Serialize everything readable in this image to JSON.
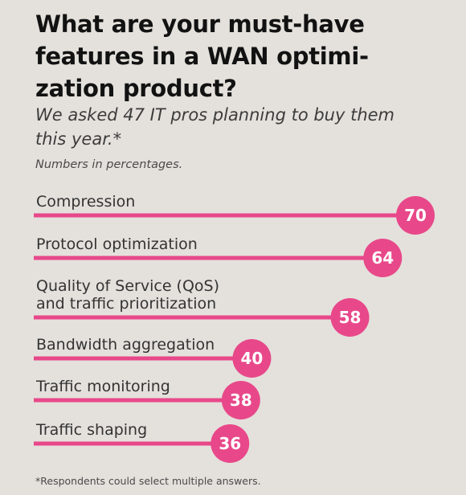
{
  "title": "What are your must-have features in a WAN optimi- zation product?",
  "subtitle": "We asked 47 IT pros planning to buy them this year.*",
  "note": "Numbers in percentages.",
  "footnote": "*Respondents could select multiple answers.",
  "accent_color": "#e8488a",
  "chart_data": {
    "type": "bar",
    "orientation": "horizontal",
    "title": "What are your must-have features in a WAN optimi- zation product?",
    "subtitle": "We asked 47 IT pros planning to buy them this year.*",
    "unit": "Numbers in percentages.",
    "categories": [
      [
        "Compression"
      ],
      [
        "Protocol optimization"
      ],
      [
        "Quality of Service (QoS)",
        "and traffic prioritization"
      ],
      [
        "Bandwidth aggregation"
      ],
      [
        "Traffic monitoring"
      ],
      [
        "Traffic shaping"
      ]
    ],
    "values": [
      70,
      64,
      58,
      40,
      38,
      36
    ],
    "value_labels": [
      "70",
      "64",
      "58",
      "40",
      "38",
      "36"
    ],
    "xlim": [
      0,
      70
    ],
    "grid": false,
    "legend": "none"
  }
}
